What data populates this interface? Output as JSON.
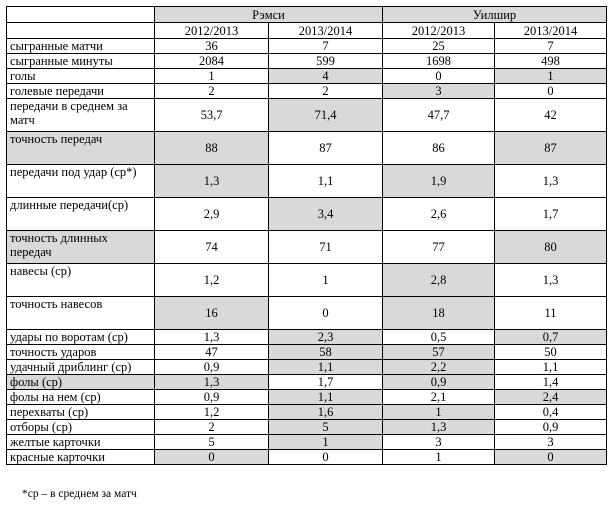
{
  "groups": [
    "Рэмси",
    "Уилшир"
  ],
  "seasons": [
    "2012/2013",
    "2013/2014",
    "2012/2013",
    "2013/2014"
  ],
  "rows": [
    {
      "label": "сыгранные матчи",
      "values": [
        "36",
        "7",
        "25",
        "7"
      ],
      "shaded": [
        false,
        false,
        false,
        false,
        false
      ],
      "h": 15
    },
    {
      "label": "сыгранные минуты",
      "values": [
        "2084",
        "599",
        "1698",
        "498"
      ],
      "shaded": [
        false,
        false,
        false,
        false,
        false
      ],
      "h": 15
    },
    {
      "label": "голы",
      "values": [
        "1",
        "4",
        "0",
        "1"
      ],
      "shaded": [
        false,
        false,
        true,
        false,
        true
      ],
      "h": 15
    },
    {
      "label": "голевые передачи",
      "values": [
        "2",
        "2",
        "3",
        "0"
      ],
      "shaded": [
        false,
        false,
        false,
        true,
        false
      ],
      "h": 15
    },
    {
      "label": "передачи в среднем за матч",
      "values": [
        "53,7",
        "71,4",
        "47,7",
        "42"
      ],
      "shaded": [
        false,
        false,
        true,
        false,
        false
      ],
      "h": 33
    },
    {
      "label": "точность передач",
      "values": [
        "88",
        "87",
        "86",
        "87"
      ],
      "shaded": [
        true,
        true,
        false,
        false,
        true
      ],
      "h": 33
    },
    {
      "label": "передачи под удар (ср*)",
      "values": [
        "1,3",
        "1,1",
        "1,9",
        "1,3"
      ],
      "shaded": [
        false,
        true,
        false,
        true,
        false
      ],
      "h": 33
    },
    {
      "label": "длинные передачи(ср)",
      "values": [
        "2,9",
        "3,4",
        "2,6",
        "1,7"
      ],
      "shaded": [
        false,
        false,
        true,
        false,
        false
      ],
      "h": 33
    },
    {
      "label": "точность длинных передач",
      "values": [
        "74",
        "71",
        "77",
        "80"
      ],
      "shaded": [
        true,
        false,
        false,
        false,
        true
      ],
      "h": 33
    },
    {
      "label": "навесы (ср)",
      "values": [
        "1,2",
        "1",
        "2,8",
        "1,3"
      ],
      "shaded": [
        false,
        false,
        false,
        true,
        false
      ],
      "h": 33
    },
    {
      "label": "точность навесов",
      "values": [
        "16",
        "0",
        "18",
        "11"
      ],
      "shaded": [
        false,
        true,
        false,
        true,
        false
      ],
      "h": 33
    },
    {
      "label": "удары по воротам (ср)",
      "values": [
        "1,3",
        "2,3",
        "0,5",
        "0,7"
      ],
      "shaded": [
        false,
        false,
        true,
        false,
        true
      ],
      "h": 15
    },
    {
      "label": "точность ударов",
      "values": [
        "47",
        "58",
        "57",
        "50"
      ],
      "shaded": [
        false,
        false,
        true,
        true,
        false
      ],
      "h": 15
    },
    {
      "label": "удачный дриблинг (ср)",
      "values": [
        "0,9",
        "1,1",
        "2,2",
        "1,1"
      ],
      "shaded": [
        false,
        false,
        true,
        true,
        false
      ],
      "h": 15
    },
    {
      "label": "фолы (ср)",
      "values": [
        "1,3",
        "1,7",
        "0,9",
        "1,4"
      ],
      "shaded": [
        true,
        true,
        false,
        true,
        false
      ],
      "h": 15
    },
    {
      "label": "фолы на нем (ср)",
      "values": [
        "0,9",
        "1,1",
        "2,1",
        "2,4"
      ],
      "shaded": [
        false,
        false,
        true,
        false,
        true
      ],
      "h": 15
    },
    {
      "label": "перехваты (ср)",
      "values": [
        "1,2",
        "1,6",
        "1",
        "0,4"
      ],
      "shaded": [
        false,
        false,
        true,
        true,
        false
      ],
      "h": 15
    },
    {
      "label": "отборы (ср)",
      "values": [
        "2",
        "5",
        "1,3",
        "0,9"
      ],
      "shaded": [
        false,
        false,
        true,
        true,
        false
      ],
      "h": 15
    },
    {
      "label": "желтые карточки",
      "values": [
        "5",
        "1",
        "3",
        "3"
      ],
      "shaded": [
        false,
        false,
        true,
        false,
        false
      ],
      "h": 15
    },
    {
      "label": "красные карточки",
      "values": [
        "0",
        "0",
        "1",
        "0"
      ],
      "shaded": [
        false,
        true,
        false,
        false,
        true
      ],
      "h": 15
    }
  ],
  "footnote": "*ср – в среднем за матч"
}
